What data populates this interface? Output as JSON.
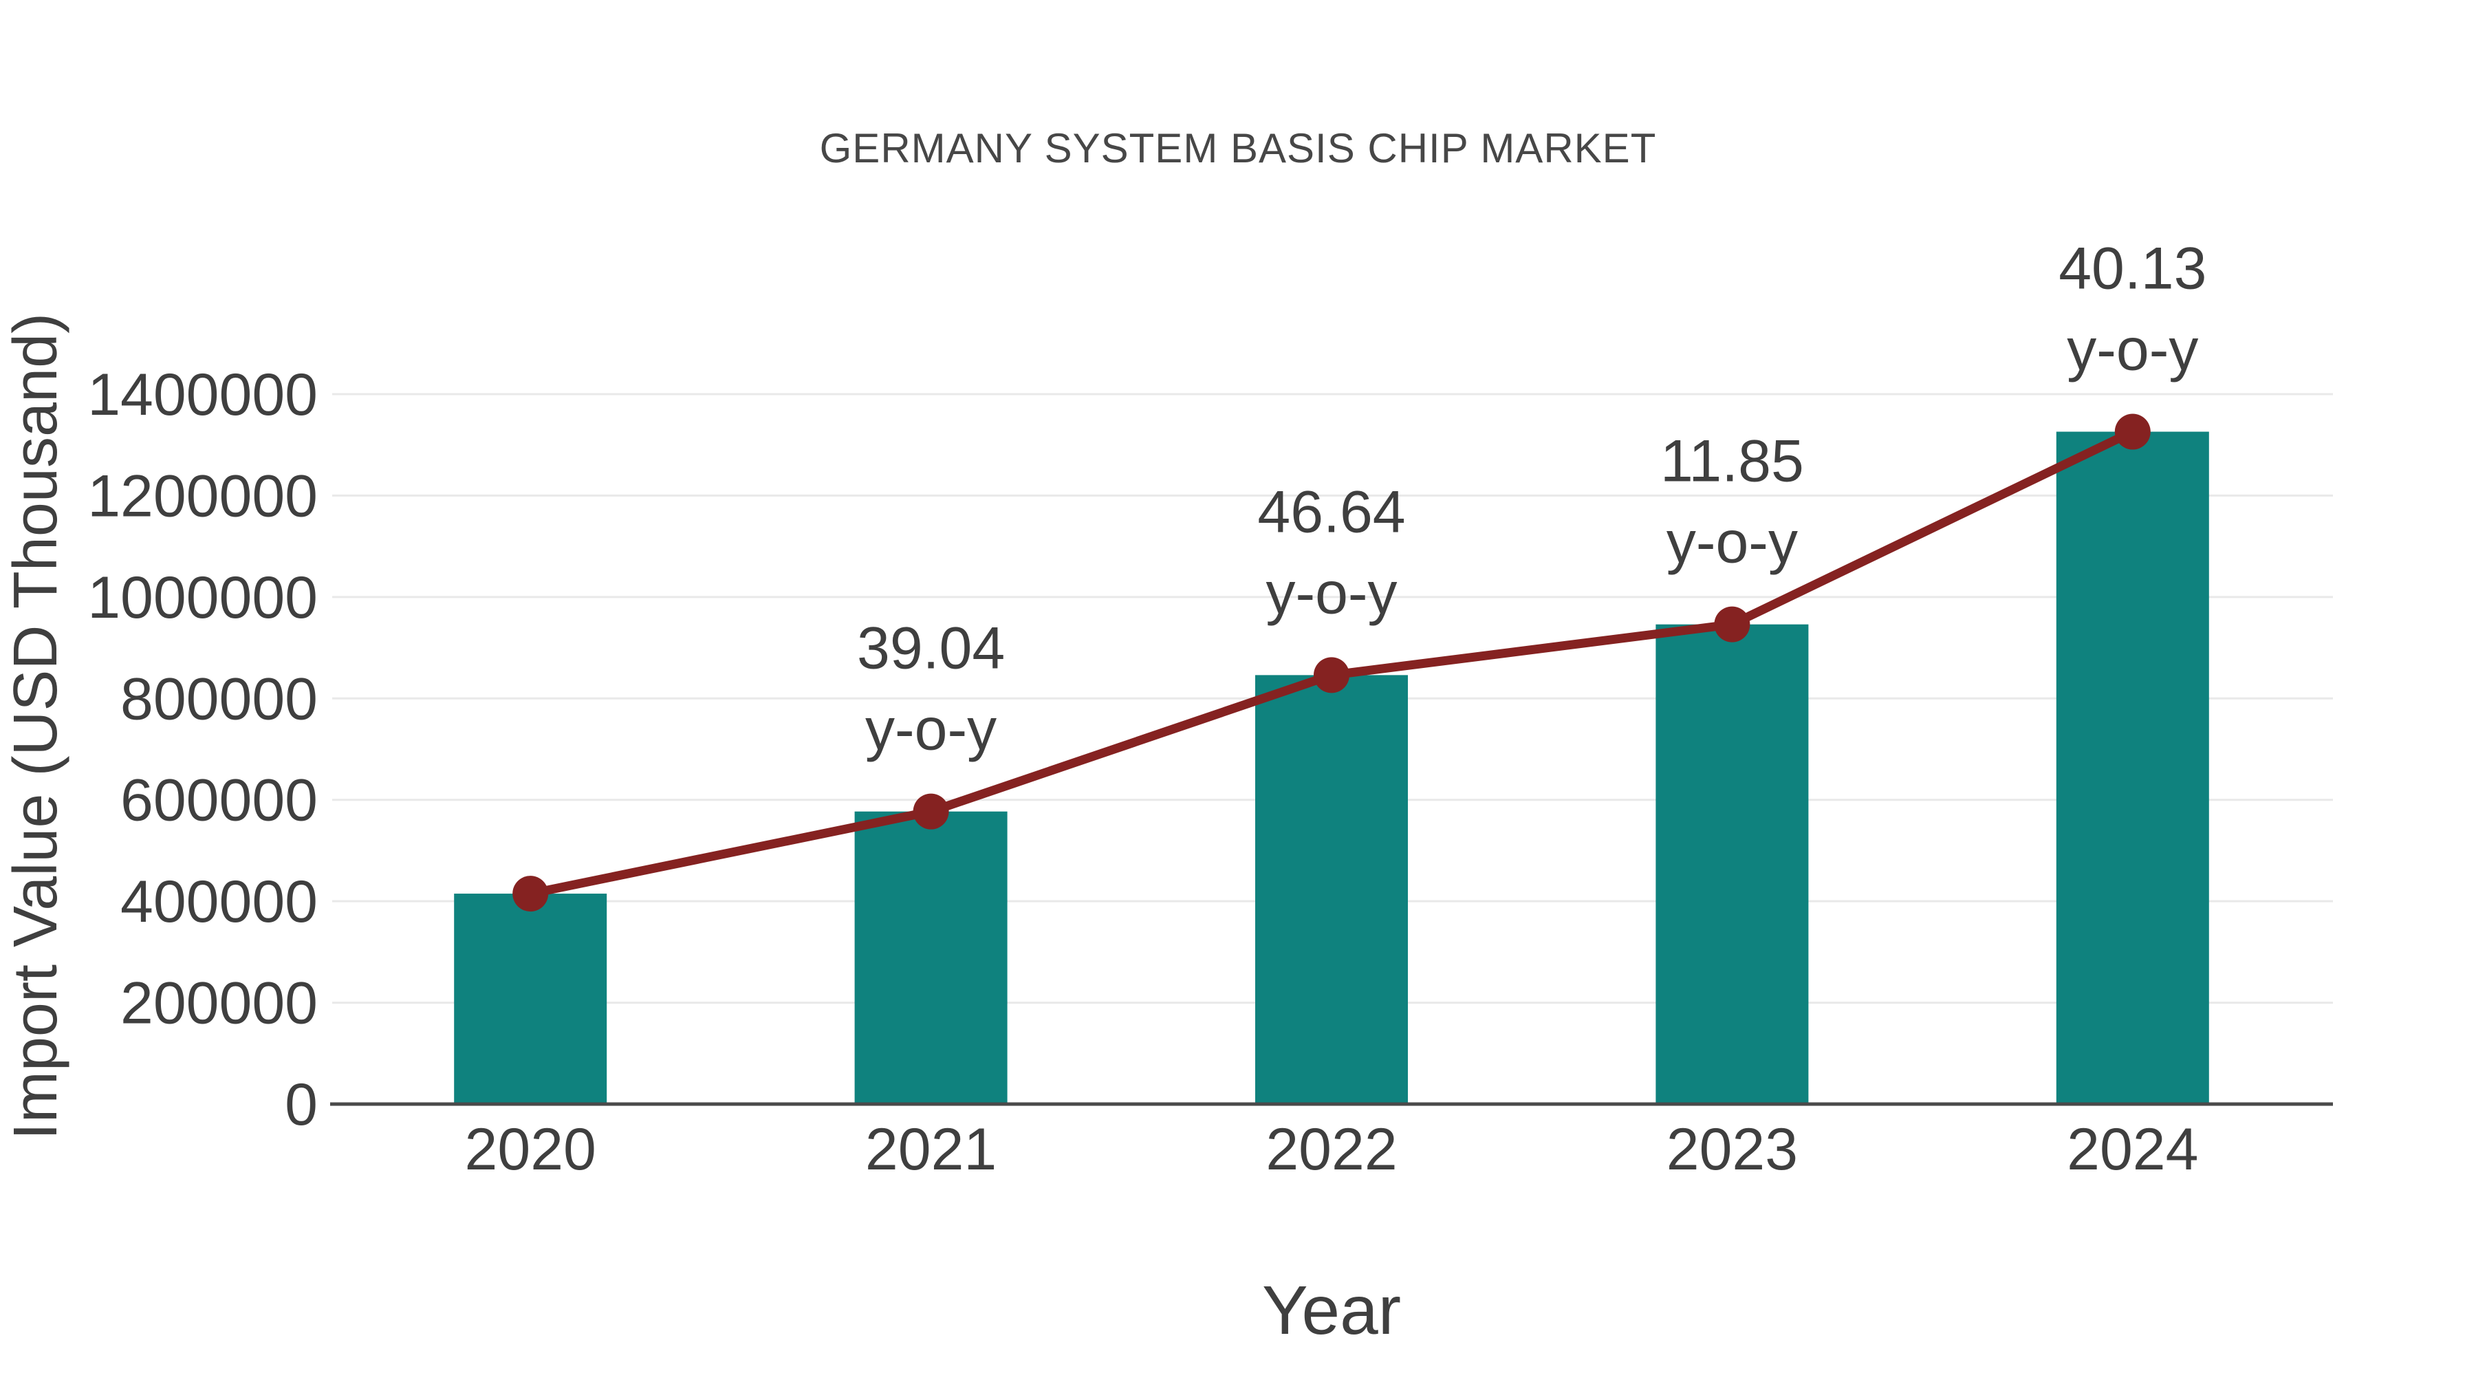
{
  "chart_data": {
    "type": "bar",
    "overlay": "line-with-markers-through-bar-tops",
    "title": "GERMANY SYSTEM BASIS CHIP MARKET",
    "xlabel": "Year",
    "ylabel": "Import Value (USD Thousand)",
    "categories": [
      "2020",
      "2021",
      "2022",
      "2023",
      "2024"
    ],
    "values": [
      415000,
      577000,
      846000,
      946000,
      1326000
    ],
    "yoy_percent": [
      null,
      39.04,
      46.64,
      11.85,
      40.13
    ],
    "yoy_labels": [
      null,
      "39.04",
      "46.64",
      "11.85",
      "40.13"
    ],
    "yoy_suffix": "y-o-y",
    "ylim": [
      0,
      1400000
    ],
    "ytick_step": 200000,
    "ytick_labels": [
      "0",
      "200000",
      "400000",
      "600000",
      "800000",
      "1000000",
      "1200000",
      "1400000"
    ],
    "grid": "horizontal",
    "legend": "none",
    "colors": {
      "bar": "#0F827E",
      "line": "#852221",
      "marker": "#852221",
      "text": "#3F3F3F",
      "title": "#474747",
      "grid": "#E9E9E9",
      "axis": "#4A4A4A",
      "background": "#FFFFFF"
    }
  }
}
